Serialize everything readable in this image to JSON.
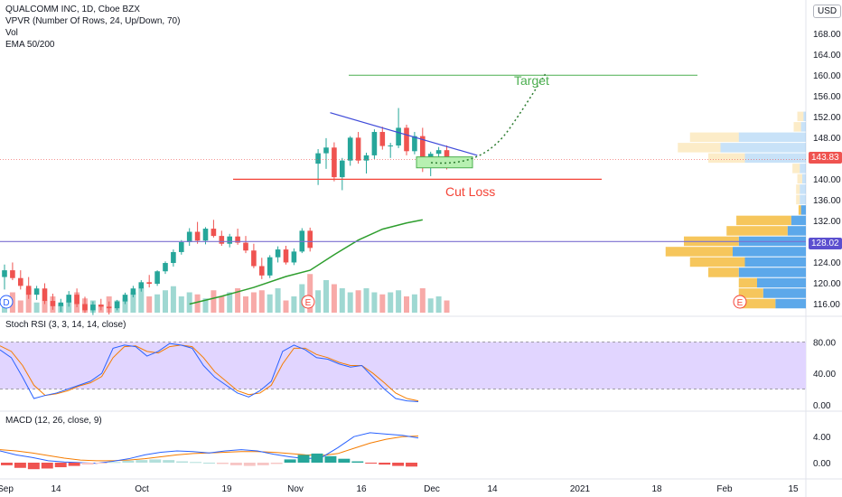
{
  "legend": {
    "symbol_line": "QUALCOMM INC, 1D, Cboe BZX",
    "vpvr_line": "VPVR (Number Of Rows, 24, Up/Down, 70)",
    "vol_line": "Vol",
    "ema_line": "EMA 50/200"
  },
  "currency": "USD",
  "price_badges": {
    "current": "143.83",
    "level": "128.02"
  },
  "colors": {
    "up": "#26a69a",
    "down": "#ef5350",
    "trendline": "#3f4bd9",
    "target_line": "#4caf50",
    "cutloss_line": "#f44336",
    "rsi_band": "#e1d5ff",
    "ema": "#2e9e2e",
    "horizontal_level": "#7b6fd0"
  },
  "annotations": {
    "target": "Target",
    "cut_loss": "Cut Loss"
  },
  "event_markers": {
    "dividend": "D",
    "earnings": "E"
  },
  "stoch_rsi": {
    "label": "Stoch RSI (3, 3, 14, 14, close)",
    "ticks": [
      "80.00",
      "40.00",
      "0.00"
    ]
  },
  "macd": {
    "label": "MACD (12, 26, close, 9)",
    "ticks": [
      "4.00",
      "0.00"
    ]
  },
  "chart_data": {
    "type": "candlestick",
    "price_axis_ticks": [
      "168.00",
      "164.00",
      "160.00",
      "156.00",
      "152.00",
      "148.00",
      "144.00",
      "140.00",
      "136.00",
      "132.00",
      "128.00",
      "124.00",
      "120.00",
      "116.00"
    ],
    "time_axis_ticks": [
      "Sep",
      "14",
      "Oct",
      "19",
      "Nov",
      "16",
      "Dec",
      "14",
      "2021",
      "18",
      "Feb",
      "15"
    ],
    "ylim": [
      114,
      171
    ],
    "candles": [
      [
        121.2,
        123.6,
        118.8,
        122.5
      ],
      [
        122.5,
        124.0,
        120.6,
        121.0
      ],
      [
        121.0,
        122.5,
        118.8,
        119.5
      ],
      [
        119.5,
        121.2,
        117.0,
        117.8
      ],
      [
        117.8,
        119.5,
        116.8,
        119.0
      ],
      [
        119.0,
        120.0,
        116.0,
        116.6
      ],
      [
        116.6,
        118.0,
        114.9,
        115.6
      ],
      [
        115.6,
        117.0,
        114.5,
        116.3
      ],
      [
        116.3,
        118.5,
        115.5,
        117.8
      ],
      [
        117.8,
        119.0,
        115.4,
        116.0
      ],
      [
        116.0,
        117.4,
        114.3,
        114.8
      ],
      [
        114.8,
        116.5,
        113.9,
        115.9
      ],
      [
        115.9,
        117.0,
        114.8,
        115.5
      ],
      [
        115.5,
        116.5,
        114.0,
        115.2
      ],
      [
        115.2,
        116.8,
        114.8,
        116.5
      ],
      [
        116.5,
        118.2,
        116.0,
        117.8
      ],
      [
        117.8,
        119.5,
        117.3,
        119.0
      ],
      [
        119.0,
        120.6,
        118.4,
        120.2
      ],
      [
        120.2,
        121.6,
        119.2,
        119.9
      ],
      [
        119.9,
        122.5,
        119.5,
        122.3
      ],
      [
        122.3,
        124.2,
        121.8,
        123.9
      ],
      [
        123.9,
        126.5,
        123.2,
        126.0
      ],
      [
        126.0,
        128.3,
        125.5,
        127.9
      ],
      [
        127.9,
        130.6,
        127.2,
        129.9
      ],
      [
        129.9,
        131.8,
        127.6,
        128.2
      ],
      [
        128.2,
        130.8,
        127.5,
        130.5
      ],
      [
        130.5,
        132.2,
        128.8,
        129.1
      ],
      [
        129.1,
        130.1,
        127.2,
        127.6
      ],
      [
        127.6,
        129.5,
        126.9,
        129.0
      ],
      [
        129.0,
        130.5,
        127.4,
        127.8
      ],
      [
        127.8,
        129.1,
        125.8,
        126.3
      ],
      [
        126.3,
        127.6,
        122.9,
        123.3
      ],
      [
        123.3,
        124.9,
        120.8,
        121.5
      ],
      [
        121.5,
        125.4,
        121.0,
        125.0
      ],
      [
        125.0,
        127.1,
        124.0,
        126.5
      ],
      [
        126.5,
        127.2,
        123.6,
        124.0
      ],
      [
        124.0,
        126.7,
        123.5,
        126.1
      ],
      [
        126.1,
        130.6,
        125.8,
        130.1
      ],
      [
        130.1,
        130.7,
        126.1,
        126.8
      ],
      [
        143.0,
        145.8,
        138.9,
        145.0
      ],
      [
        145.0,
        147.9,
        142.0,
        146.1
      ],
      [
        146.1,
        147.1,
        139.6,
        140.4
      ],
      [
        140.4,
        144.1,
        137.9,
        143.6
      ],
      [
        143.6,
        148.3,
        142.6,
        148.0
      ],
      [
        148.0,
        149.1,
        143.0,
        143.6
      ],
      [
        143.6,
        145.1,
        141.1,
        144.6
      ],
      [
        144.6,
        149.6,
        143.9,
        149.1
      ],
      [
        149.1,
        150.1,
        145.7,
        146.4
      ],
      [
        146.4,
        147.0,
        144.1,
        146.5
      ],
      [
        146.5,
        153.7,
        146.0,
        149.9
      ],
      [
        149.9,
        150.5,
        144.6,
        145.4
      ],
      [
        145.4,
        149.1,
        144.8,
        148.3
      ],
      [
        148.3,
        149.9,
        141.4,
        142.3
      ],
      [
        142.3,
        145.3,
        140.6,
        144.9
      ],
      [
        144.9,
        146.2,
        143.6,
        145.6
      ],
      [
        145.6,
        146.5,
        141.9,
        142.6
      ]
    ],
    "volume_relative": [
      0.35,
      0.5,
      0.3,
      0.6,
      0.25,
      0.3,
      0.4,
      0.2,
      0.3,
      0.5,
      0.35,
      0.3,
      0.2,
      0.4,
      0.3,
      0.35,
      0.5,
      0.6,
      0.4,
      0.45,
      0.55,
      0.65,
      0.4,
      0.5,
      0.45,
      0.35,
      0.55,
      0.4,
      0.5,
      0.6,
      0.4,
      0.5,
      0.55,
      0.45,
      0.6,
      0.3,
      0.4,
      0.7,
      0.95,
      0.55,
      0.8,
      0.7,
      0.6,
      0.5,
      0.55,
      0.6,
      0.5,
      0.45,
      0.5,
      0.55,
      0.4,
      0.45,
      0.6,
      0.35,
      0.4,
      0.3
    ],
    "ema50": {
      "x_range": [
        23,
        52
      ],
      "values_start_end": [
        116,
        132
      ],
      "points": [
        [
          23,
          116
        ],
        [
          27,
          117.5
        ],
        [
          31,
          119.2
        ],
        [
          35,
          121.3
        ],
        [
          38,
          122.5
        ],
        [
          41,
          125.5
        ],
        [
          44,
          128.3
        ],
        [
          47,
          130.4
        ],
        [
          50,
          131.6
        ],
        [
          52,
          132.2
        ]
      ]
    },
    "trendline": {
      "from": [
        40.5,
        152.8
      ],
      "to": [
        58.8,
        144.6
      ]
    },
    "support_zone": [
      142.2,
      144.3
    ],
    "target_level": 160.0,
    "cut_loss_level": 140.0,
    "horizontal_level": 128.02,
    "current_price": 143.83,
    "projection": [
      [
        59,
        143.2
      ],
      [
        62,
        144.5
      ],
      [
        65,
        148.6
      ],
      [
        67,
        152.5
      ],
      [
        69,
        156.5
      ],
      [
        70,
        160.0
      ]
    ],
    "volume_profile": [
      {
        "price": 152,
        "up": 0.05,
        "down": 0.02
      },
      {
        "price": 150,
        "up": 0.06,
        "down": 0.04
      },
      {
        "price": 148,
        "up": 0.4,
        "down": 0.55
      },
      {
        "price": 146,
        "up": 0.35,
        "down": 0.7
      },
      {
        "price": 144,
        "up": 0.3,
        "down": 0.5
      },
      {
        "price": 142,
        "up": 0.06,
        "down": 0.05
      },
      {
        "price": 140,
        "up": 0.04,
        "down": 0.03
      },
      {
        "price": 138,
        "up": 0.03,
        "down": 0.05
      },
      {
        "price": 136,
        "up": 0.03,
        "down": 0.05
      },
      {
        "price": 134,
        "up": 0.02,
        "down": 0.04
      },
      {
        "price": 132,
        "up": 0.45,
        "down": 0.12
      },
      {
        "price": 130,
        "up": 0.5,
        "down": 0.15
      },
      {
        "price": 128,
        "up": 0.45,
        "down": 0.55
      },
      {
        "price": 126,
        "up": 0.55,
        "down": 0.6
      },
      {
        "price": 124,
        "up": 0.45,
        "down": 0.5
      },
      {
        "price": 122,
        "up": 0.25,
        "down": 0.55
      },
      {
        "price": 120,
        "up": 0.15,
        "down": 0.4
      },
      {
        "price": 118,
        "up": 0.2,
        "down": 0.35
      },
      {
        "price": 116,
        "up": 0.3,
        "down": 0.25
      }
    ],
    "stoch_k": [
      70,
      60,
      35,
      8,
      12,
      15,
      20,
      25,
      30,
      40,
      72,
      76,
      74,
      62,
      68,
      78,
      76,
      72,
      50,
      35,
      25,
      15,
      10,
      18,
      30,
      68,
      76,
      70,
      60,
      58,
      52,
      48,
      50,
      35,
      20,
      8,
      5,
      4
    ],
    "stoch_d": [
      75,
      68,
      50,
      25,
      12,
      14,
      18,
      24,
      28,
      36,
      60,
      74,
      75,
      68,
      66,
      74,
      76,
      74,
      60,
      42,
      30,
      18,
      13,
      15,
      25,
      52,
      72,
      72,
      64,
      60,
      54,
      50,
      50,
      40,
      28,
      15,
      8,
      5
    ],
    "macd_line": [
      1.8,
      1.2,
      0.8,
      0.3,
      0.1,
      0.0,
      -0.1,
      0.2,
      0.6,
      1.2,
      1.6,
      1.8,
      1.7,
      1.5,
      1.8,
      2.0,
      1.8,
      1.3,
      0.9,
      0.6,
      0.8,
      2.3,
      4.0,
      4.6,
      4.4,
      4.2,
      3.8
    ],
    "macd_signal": [
      2.0,
      1.8,
      1.5,
      1.1,
      0.7,
      0.4,
      0.3,
      0.3,
      0.4,
      0.6,
      0.9,
      1.2,
      1.4,
      1.5,
      1.6,
      1.7,
      1.7,
      1.6,
      1.4,
      1.2,
      1.1,
      1.4,
      2.2,
      3.0,
      3.6,
      4.0,
      4.1
    ],
    "macd_hist": [
      -0.4,
      -0.8,
      -1.0,
      -0.9,
      -0.7,
      -0.5,
      -0.3,
      -0.1,
      0.1,
      0.3,
      0.4,
      0.5,
      0.4,
      0.2,
      0.1,
      0.0,
      -0.2,
      -0.4,
      -0.5,
      -0.4,
      -0.2,
      0.5,
      1.2,
      1.4,
      1.0,
      0.6,
      0.2,
      -0.1,
      -0.3,
      -0.5,
      -0.6
    ]
  }
}
